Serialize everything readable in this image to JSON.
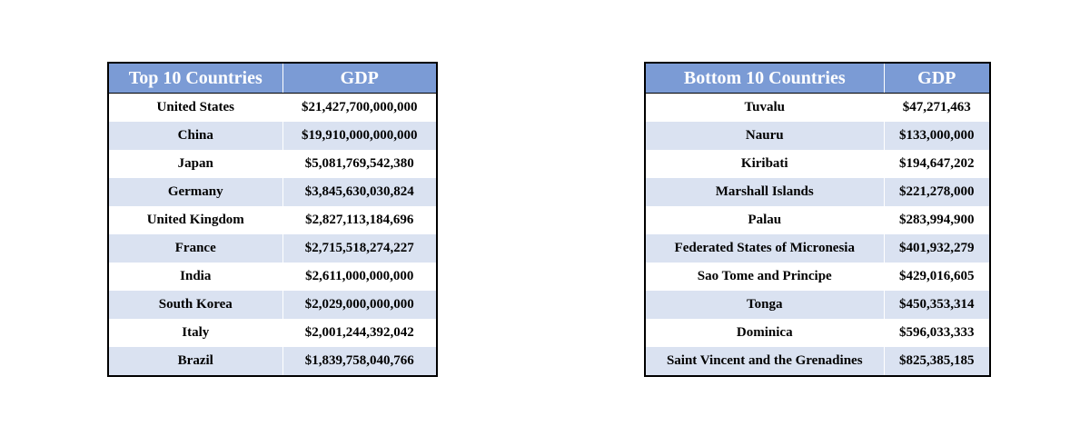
{
  "top_table": {
    "headers": [
      "Top 10 Countries",
      "GDP"
    ],
    "rows": [
      {
        "country": "United States",
        "gdp": "$21,427,700,000,000"
      },
      {
        "country": "China",
        "gdp": "$19,910,000,000,000"
      },
      {
        "country": "Japan",
        "gdp": "$5,081,769,542,380"
      },
      {
        "country": "Germany",
        "gdp": "$3,845,630,030,824"
      },
      {
        "country": "United Kingdom",
        "gdp": "$2,827,113,184,696"
      },
      {
        "country": "France",
        "gdp": "$2,715,518,274,227"
      },
      {
        "country": "India",
        "gdp": "$2,611,000,000,000"
      },
      {
        "country": "South Korea",
        "gdp": "$2,029,000,000,000"
      },
      {
        "country": "Italy",
        "gdp": "$2,001,244,392,042"
      },
      {
        "country": "Brazil",
        "gdp": "$1,839,758,040,766"
      }
    ]
  },
  "bottom_table": {
    "headers": [
      "Bottom 10 Countries",
      "GDP"
    ],
    "rows": [
      {
        "country": "Tuvalu",
        "gdp": "$47,271,463"
      },
      {
        "country": "Nauru",
        "gdp": "$133,000,000"
      },
      {
        "country": "Kiribati",
        "gdp": "$194,647,202"
      },
      {
        "country": "Marshall Islands",
        "gdp": "$221,278,000"
      },
      {
        "country": "Palau",
        "gdp": "$283,994,900"
      },
      {
        "country": "Federated States of Micronesia",
        "gdp": "$401,932,279"
      },
      {
        "country": "Sao Tome and Principe",
        "gdp": "$429,016,605"
      },
      {
        "country": "Tonga",
        "gdp": "$450,353,314"
      },
      {
        "country": "Dominica",
        "gdp": "$596,033,333"
      },
      {
        "country": "Saint Vincent and the Grenadines",
        "gdp": "$825,385,185"
      }
    ]
  },
  "colors": {
    "header_background": "#7b9bd5",
    "header_text": "#ffffff",
    "band_row_background": "#dae2f1",
    "border": "#000000"
  }
}
